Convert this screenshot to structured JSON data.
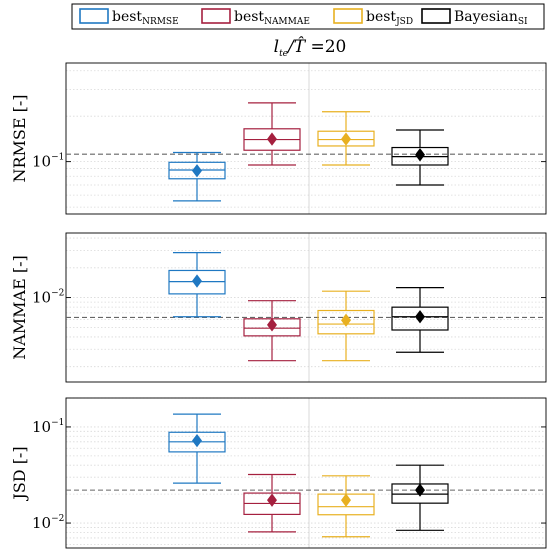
{
  "legend": [
    {
      "text": "best",
      "sub": "NRMSE",
      "color": "#1f78c2"
    },
    {
      "text": "best",
      "sub": "NAMMAE",
      "color": "#a5203f"
    },
    {
      "text": "best",
      "sub": "JSD",
      "color": "#e8b021"
    },
    {
      "text": "Bayesian",
      "sub": "SI",
      "color": "#000000"
    }
  ],
  "title_prefix": "l",
  "title_prefix_sub": "te",
  "title_mid": "/",
  "title_that": "T̂",
  "title_suffix": " =20",
  "chart_data": [
    {
      "type": "box",
      "ylabel": "NRMSE [-]",
      "yscale": "log",
      "ylim": [
        0.045,
        0.45
      ],
      "yticks": [
        {
          "value": 0.1,
          "base": "10",
          "exp": "−1"
        }
      ],
      "reference_line": 0.112,
      "grid": "minor-dotted",
      "series": [
        {
          "name": "bestNRMSE",
          "color": "#1f78c2",
          "whisker_low": 0.055,
          "q1": 0.077,
          "median": 0.088,
          "q3": 0.099,
          "whisker_high": 0.115,
          "mean": 0.087
        },
        {
          "name": "bestNAMMAE",
          "color": "#a5203f",
          "whisker_low": 0.095,
          "q1": 0.119,
          "median": 0.14,
          "q3": 0.165,
          "whisker_high": 0.245,
          "mean": 0.141
        },
        {
          "name": "bestJSD",
          "color": "#e8b021",
          "whisker_low": 0.095,
          "q1": 0.127,
          "median": 0.14,
          "q3": 0.159,
          "whisker_high": 0.214,
          "mean": 0.141
        },
        {
          "name": "BayesianSI",
          "color": "#000000",
          "whisker_low": 0.07,
          "q1": 0.095,
          "median": 0.108,
          "q3": 0.124,
          "whisker_high": 0.162,
          "mean": 0.111
        }
      ]
    },
    {
      "type": "box",
      "ylabel": "NAMMAE [-]",
      "yscale": "log",
      "ylim": [
        0.0014,
        0.045
      ],
      "yticks": [
        {
          "value": 0.01,
          "base": "10",
          "exp": "−2"
        }
      ],
      "reference_line": 0.0063,
      "grid": "minor-dotted",
      "series": [
        {
          "name": "bestNRMSE",
          "color": "#1f78c2",
          "whisker_low": 0.0064,
          "q1": 0.0109,
          "median": 0.0145,
          "q3": 0.0188,
          "whisker_high": 0.0285,
          "mean": 0.0147
        },
        {
          "name": "bestNAMMAE",
          "color": "#a5203f",
          "whisker_low": 0.0023,
          "q1": 0.0041,
          "median": 0.0049,
          "q3": 0.0061,
          "whisker_high": 0.0093,
          "mean": 0.0053
        },
        {
          "name": "bestJSD",
          "color": "#e8b021",
          "whisker_low": 0.0023,
          "q1": 0.0043,
          "median": 0.0054,
          "q3": 0.0074,
          "whisker_high": 0.0116,
          "mean": 0.0059
        },
        {
          "name": "BayesianSI",
          "color": "#000000",
          "whisker_low": 0.0028,
          "q1": 0.0047,
          "median": 0.0064,
          "q3": 0.008,
          "whisker_high": 0.0126,
          "mean": 0.0064
        }
      ]
    },
    {
      "type": "box",
      "ylabel": "JSD [-]",
      "yscale": "log",
      "ylim": [
        0.0055,
        0.2
      ],
      "yticks": [
        {
          "value": 0.1,
          "base": "10",
          "exp": "−1"
        },
        {
          "value": 0.01,
          "base": "10",
          "exp": "−2"
        }
      ],
      "reference_line": 0.022,
      "grid": "minor-dotted",
      "series": [
        {
          "name": "bestNRMSE",
          "color": "#1f78c2",
          "whisker_low": 0.026,
          "q1": 0.055,
          "median": 0.07,
          "q3": 0.088,
          "whisker_high": 0.136,
          "mean": 0.072
        },
        {
          "name": "bestNAMMAE",
          "color": "#a5203f",
          "whisker_low": 0.0081,
          "q1": 0.0123,
          "median": 0.016,
          "q3": 0.0205,
          "whisker_high": 0.032,
          "mean": 0.0173
        },
        {
          "name": "bestJSD",
          "color": "#e8b021",
          "whisker_low": 0.0072,
          "q1": 0.0122,
          "median": 0.0148,
          "q3": 0.02,
          "whisker_high": 0.031,
          "mean": 0.0173
        },
        {
          "name": "BayesianSI",
          "color": "#000000",
          "whisker_low": 0.0084,
          "q1": 0.0161,
          "median": 0.02,
          "q3": 0.0255,
          "whisker_high": 0.04,
          "mean": 0.022
        }
      ]
    }
  ]
}
